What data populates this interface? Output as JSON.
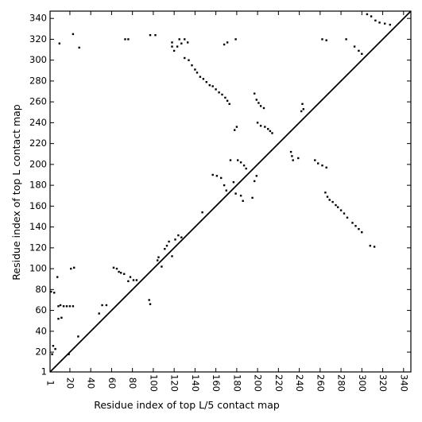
{
  "chart_data": {
    "type": "scatter",
    "xlabel": "Residue index of top L/5 contact map",
    "ylabel": "Residue index of top L contact map",
    "xlim": [
      1,
      347
    ],
    "ylim": [
      1,
      347
    ],
    "x_ticks": [
      1,
      20,
      40,
      60,
      80,
      100,
      120,
      140,
      160,
      180,
      200,
      220,
      240,
      260,
      280,
      300,
      320,
      340
    ],
    "y_ticks": [
      1,
      20,
      40,
      60,
      80,
      100,
      120,
      140,
      160,
      180,
      200,
      220,
      240,
      260,
      280,
      300,
      320,
      340
    ],
    "diagonal": [
      [
        1,
        1
      ],
      [
        347,
        347
      ]
    ],
    "grid": false,
    "legend": "none",
    "marker_color": "#000000",
    "series": [
      {
        "values_note": "upper-left triangle: top L contacts",
        "points": [
          [
            10,
            316
          ],
          [
            23,
            325
          ],
          [
            29,
            312
          ],
          [
            73,
            320
          ],
          [
            76,
            320
          ],
          [
            97,
            324
          ],
          [
            102,
            324
          ],
          [
            118,
            317
          ],
          [
            118,
            313
          ],
          [
            120,
            309
          ],
          [
            123,
            313
          ],
          [
            125,
            320
          ],
          [
            127,
            316
          ],
          [
            130,
            320
          ],
          [
            133,
            317
          ],
          [
            130,
            302
          ],
          [
            134,
            300
          ],
          [
            137,
            295
          ],
          [
            140,
            291
          ],
          [
            142,
            288
          ],
          [
            145,
            284
          ],
          [
            148,
            282
          ],
          [
            151,
            279
          ],
          [
            154,
            276
          ],
          [
            157,
            275
          ],
          [
            160,
            272
          ],
          [
            163,
            269
          ],
          [
            166,
            267
          ],
          [
            169,
            264
          ],
          [
            171,
            261
          ],
          [
            173,
            258
          ],
          [
            168,
            315
          ],
          [
            171,
            317
          ],
          [
            179,
            320
          ],
          [
            178,
            233
          ],
          [
            180,
            236
          ],
          [
            197,
            268
          ],
          [
            199,
            262
          ],
          [
            201,
            259
          ],
          [
            203,
            256
          ],
          [
            206,
            254
          ],
          [
            200,
            240
          ],
          [
            203,
            237
          ],
          [
            207,
            236
          ],
          [
            210,
            234
          ],
          [
            212,
            232
          ],
          [
            214,
            230
          ],
          [
            243,
            258
          ],
          [
            244,
            253
          ],
          [
            242,
            251
          ],
          [
            232,
            212
          ],
          [
            233,
            208
          ],
          [
            234,
            204
          ],
          [
            239,
            206
          ],
          [
            262,
            320
          ],
          [
            266,
            319
          ],
          [
            285,
            320
          ],
          [
            293,
            313
          ],
          [
            297,
            309
          ],
          [
            300,
            306
          ],
          [
            305,
            344
          ],
          [
            309,
            342
          ],
          [
            313,
            338
          ],
          [
            317,
            336
          ],
          [
            322,
            335
          ],
          [
            327,
            334
          ]
        ]
      },
      {
        "values_note": "lower-right triangle: top L/5 contacts",
        "points": [
          [
            2,
            78
          ],
          [
            5,
            77
          ],
          [
            4,
            26
          ],
          [
            6,
            23
          ],
          [
            3,
            18
          ],
          [
            8,
            92
          ],
          [
            9,
            64
          ],
          [
            11,
            65
          ],
          [
            14,
            64
          ],
          [
            17,
            64
          ],
          [
            20,
            64
          ],
          [
            23,
            64
          ],
          [
            9,
            52
          ],
          [
            12,
            53
          ],
          [
            21,
            100
          ],
          [
            24,
            101
          ],
          [
            28,
            35
          ],
          [
            19,
            18
          ],
          [
            48,
            57
          ],
          [
            51,
            65
          ],
          [
            55,
            65
          ],
          [
            62,
            101
          ],
          [
            65,
            100
          ],
          [
            67,
            97
          ],
          [
            69,
            96
          ],
          [
            72,
            95
          ],
          [
            76,
            88
          ],
          [
            78,
            92
          ],
          [
            81,
            89
          ],
          [
            84,
            89
          ],
          [
            96,
            70
          ],
          [
            97,
            66
          ],
          [
            104,
            108
          ],
          [
            105,
            111
          ],
          [
            108,
            102
          ],
          [
            111,
            119
          ],
          [
            113,
            122
          ],
          [
            115,
            126
          ],
          [
            118,
            112
          ],
          [
            121,
            128
          ],
          [
            124,
            132
          ],
          [
            127,
            130
          ],
          [
            147,
            154
          ],
          [
            157,
            190
          ],
          [
            161,
            189
          ],
          [
            165,
            187
          ],
          [
            168,
            180
          ],
          [
            170,
            175
          ],
          [
            174,
            204
          ],
          [
            177,
            183
          ],
          [
            179,
            172
          ],
          [
            181,
            204
          ],
          [
            184,
            202
          ],
          [
            187,
            199
          ],
          [
            189,
            196
          ],
          [
            184,
            170
          ],
          [
            186,
            165
          ],
          [
            195,
            168
          ],
          [
            197,
            184
          ],
          [
            199,
            189
          ],
          [
            255,
            204
          ],
          [
            258,
            201
          ],
          [
            262,
            199
          ],
          [
            266,
            197
          ],
          [
            265,
            173
          ],
          [
            267,
            169
          ],
          [
            269,
            166
          ],
          [
            272,
            164
          ],
          [
            275,
            161
          ],
          [
            277,
            159
          ],
          [
            280,
            156
          ],
          [
            283,
            153
          ],
          [
            286,
            149
          ],
          [
            291,
            144
          ],
          [
            294,
            141
          ],
          [
            297,
            138
          ],
          [
            300,
            135
          ],
          [
            308,
            122
          ],
          [
            312,
            121
          ]
        ]
      }
    ]
  }
}
